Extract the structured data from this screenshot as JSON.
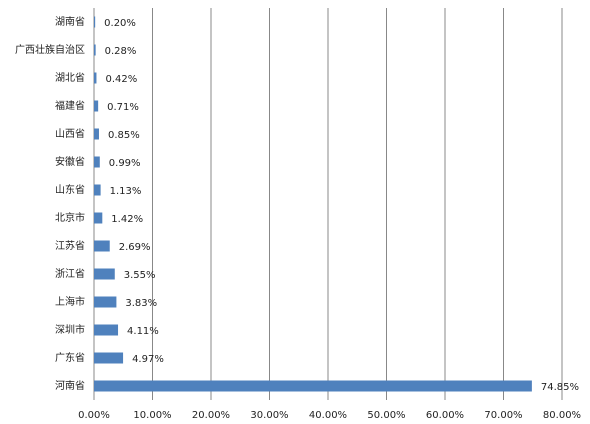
{
  "chart_data": {
    "type": "hbar",
    "categories": [
      "湖南省",
      "广西壮族自治区",
      "湖北省",
      "福建省",
      "山西省",
      "安徽省",
      "山东省",
      "北京市",
      "江苏省",
      "浙江省",
      "上海市",
      "深圳市",
      "广东省",
      "河南省"
    ],
    "values": [
      0.2,
      0.28,
      0.42,
      0.71,
      0.85,
      0.99,
      1.13,
      1.42,
      2.69,
      3.55,
      3.83,
      4.11,
      4.97,
      74.85
    ],
    "value_labels": [
      "0.20%",
      "0.28%",
      "0.42%",
      "0.71%",
      "0.85%",
      "0.99%",
      "1.13%",
      "1.42%",
      "2.69%",
      "3.55%",
      "3.83%",
      "4.11%",
      "4.97%",
      "74.85%"
    ],
    "color": "#4f81bd",
    "xlim": [
      0,
      80
    ],
    "xticks": [
      {
        "value": 0,
        "label": "0.00%"
      },
      {
        "value": 10,
        "label": "10.00%"
      },
      {
        "value": 20,
        "label": "20.00%"
      },
      {
        "value": 30,
        "label": "30.00%"
      },
      {
        "value": 40,
        "label": "40.00%"
      },
      {
        "value": 50,
        "label": "50.00%"
      },
      {
        "value": 60,
        "label": "60.00%"
      },
      {
        "value": 70,
        "label": "70.00%"
      },
      {
        "value": 80,
        "label": "80.00%"
      }
    ],
    "grid": true
  }
}
